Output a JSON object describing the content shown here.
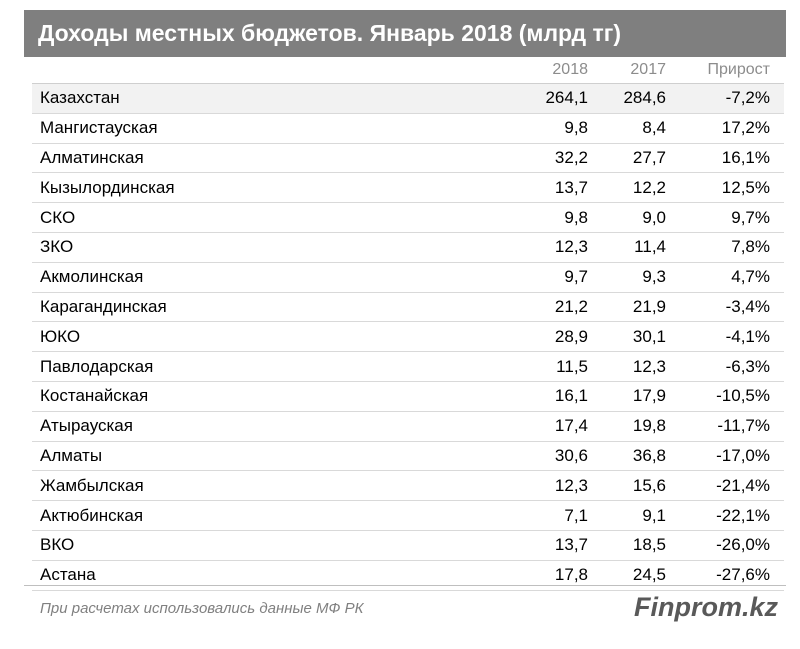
{
  "chart_data": {
    "type": "table",
    "title": "Доходы местных бюджетов. Январь 2018 (млрд тг)",
    "columns": [
      "",
      "2018",
      "2017",
      "Прирост"
    ],
    "rows": [
      {
        "name": "Казахстан",
        "y2018": "264,1",
        "y2017": "284,6",
        "growth": "-7,2%"
      },
      {
        "name": "Мангистауская",
        "y2018": "9,8",
        "y2017": "8,4",
        "growth": "17,2%"
      },
      {
        "name": "Алматинская",
        "y2018": "32,2",
        "y2017": "27,7",
        "growth": "16,1%"
      },
      {
        "name": "Кызылординская",
        "y2018": "13,7",
        "y2017": "12,2",
        "growth": "12,5%"
      },
      {
        "name": "СКО",
        "y2018": "9,8",
        "y2017": "9,0",
        "growth": "9,7%"
      },
      {
        "name": "ЗКО",
        "y2018": "12,3",
        "y2017": "11,4",
        "growth": "7,8%"
      },
      {
        "name": "Акмолинская",
        "y2018": "9,7",
        "y2017": "9,3",
        "growth": "4,7%"
      },
      {
        "name": "Карагандинская",
        "y2018": "21,2",
        "y2017": "21,9",
        "growth": "-3,4%"
      },
      {
        "name": "ЮКО",
        "y2018": "28,9",
        "y2017": "30,1",
        "growth": "-4,1%"
      },
      {
        "name": "Павлодарская",
        "y2018": "11,5",
        "y2017": "12,3",
        "growth": "-6,3%"
      },
      {
        "name": "Костанайская",
        "y2018": "16,1",
        "y2017": "17,9",
        "growth": "-10,5%"
      },
      {
        "name": "Атырауская",
        "y2018": "17,4",
        "y2017": "19,8",
        "growth": "-11,7%"
      },
      {
        "name": "Алматы",
        "y2018": "30,6",
        "y2017": "36,8",
        "growth": "-17,0%"
      },
      {
        "name": "Жамбылская",
        "y2018": "12,3",
        "y2017": "15,6",
        "growth": "-21,4%"
      },
      {
        "name": "Актюбинская",
        "y2018": "7,1",
        "y2017": "9,1",
        "growth": "-22,1%"
      },
      {
        "name": "ВКО",
        "y2018": "13,7",
        "y2017": "18,5",
        "growth": "-26,0%"
      },
      {
        "name": "Астана",
        "y2018": "17,8",
        "y2017": "24,5",
        "growth": "-27,6%"
      }
    ]
  },
  "footer": {
    "source": "При расчетах использовались данные МФ РК",
    "brand": "Finprom.kz"
  },
  "colors": {
    "title_bar": "#7f7f7f",
    "first_row": "#f2f2f2"
  }
}
